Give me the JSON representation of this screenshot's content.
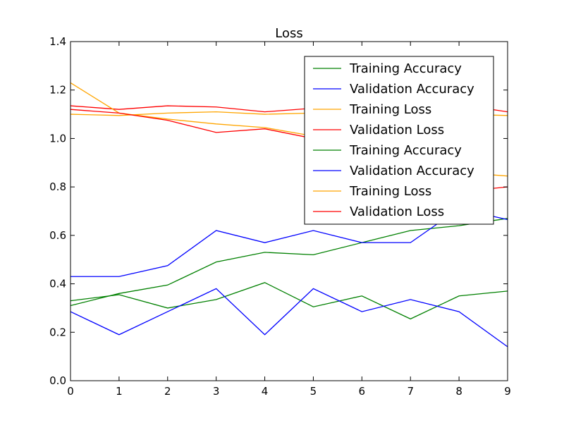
{
  "chart_data": {
    "type": "line",
    "title": "Loss",
    "xlabel": "",
    "ylabel": "",
    "xlim": [
      0,
      9
    ],
    "ylim": [
      0.0,
      1.4
    ],
    "x": [
      0,
      1,
      2,
      3,
      4,
      5,
      6,
      7,
      8,
      9
    ],
    "x_ticks": [
      "0",
      "1",
      "2",
      "3",
      "4",
      "5",
      "6",
      "7",
      "8",
      "9"
    ],
    "y_ticks": [
      "0.0",
      "0.2",
      "0.4",
      "0.6",
      "0.8",
      "1.0",
      "1.2",
      "1.4"
    ],
    "grid": false,
    "legend_position": "top-right",
    "series": [
      {
        "name": "Training Accuracy",
        "color": "#008000",
        "values": [
          0.31,
          0.36,
          0.395,
          0.49,
          0.53,
          0.52,
          0.57,
          0.62,
          0.64,
          0.67
        ]
      },
      {
        "name": "Validation Accuracy",
        "color": "#0000ff",
        "values": [
          0.43,
          0.43,
          0.475,
          0.62,
          0.57,
          0.62,
          0.57,
          0.57,
          0.71,
          0.665
        ]
      },
      {
        "name": "Training Loss",
        "color": "#ffa500",
        "values": [
          1.1,
          1.095,
          1.105,
          1.11,
          1.1,
          1.105,
          1.1,
          1.1,
          1.1,
          1.095
        ]
      },
      {
        "name": "Validation Loss",
        "color": "#ff0000",
        "values": [
          1.135,
          1.12,
          1.135,
          1.13,
          1.11,
          1.125,
          1.12,
          1.115,
          1.14,
          1.11
        ]
      },
      {
        "name": "Training Accuracy",
        "color": "#008000",
        "values": [
          0.33,
          0.355,
          0.3,
          0.335,
          0.405,
          0.305,
          0.35,
          0.255,
          0.35,
          0.37
        ]
      },
      {
        "name": "Validation Accuracy",
        "color": "#0000ff",
        "values": [
          0.285,
          0.19,
          0.285,
          0.38,
          0.19,
          0.38,
          0.285,
          0.335,
          0.285,
          0.14
        ]
      },
      {
        "name": "Training Loss",
        "color": "#ffa500",
        "values": [
          1.23,
          1.105,
          1.08,
          1.06,
          1.045,
          1.01,
          0.95,
          0.9,
          0.86,
          0.845
        ]
      },
      {
        "name": "Validation Loss",
        "color": "#ff0000",
        "values": [
          1.12,
          1.105,
          1.075,
          1.025,
          1.04,
          1.0,
          0.94,
          0.88,
          0.78,
          0.8
        ]
      }
    ]
  }
}
